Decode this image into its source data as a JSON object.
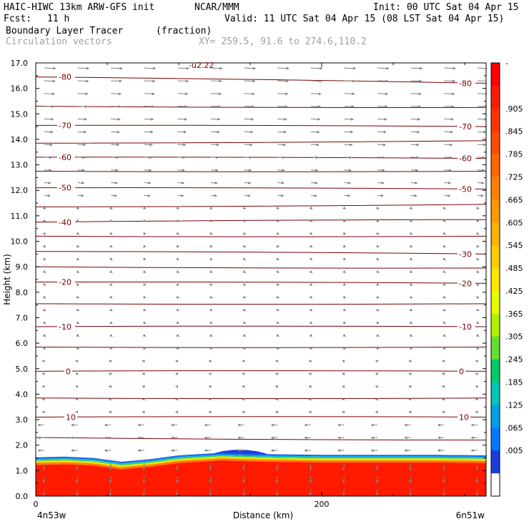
{
  "header": {
    "model_title": "HAIC-HIWC 13km ARW-GFS init",
    "org": "NCAR/MMM",
    "init": "Init: 00 UTC Sat 04 Apr 15",
    "fcst_label": "Fcst:",
    "fcst_value": "11 h",
    "valid": "Valid: 11 UTC Sat 04 Apr 15 (08 LST Sat 04 Apr 15)",
    "field_name": "Boundary Layer Tracer",
    "field_unit": "(fraction)",
    "overlay_name": "Circulation vectors",
    "xy_text": "XY= 259.5, 91.6 to 274.6,110.2",
    "top_fragment": "-u2.22"
  },
  "chart_data": {
    "type": "heatmap",
    "xlabel": "Distance (km)",
    "ylabel": "Height (km)",
    "xlim": [
      0,
      315
    ],
    "ylim": [
      0,
      17
    ],
    "y_ticks": [
      "0.0",
      "1.0",
      "2.0",
      "3.0",
      "4.0",
      "5.0",
      "6.0",
      "7.0",
      "8.0",
      "9.0",
      "10.0",
      "11.0",
      "12.0",
      "13.0",
      "14.0",
      "15.0",
      "16.0",
      "17.0"
    ],
    "x_ticks": [
      {
        "value": 0,
        "label": "0"
      },
      {
        "value": 200,
        "label": "200"
      }
    ],
    "x_end_labels": {
      "left": "4n53w",
      "right": "6n51w"
    },
    "colorbar": {
      "labels": [
        "-",
        ".905",
        ".845",
        ".785",
        ".725",
        ".665",
        ".605",
        ".545",
        ".485",
        ".425",
        ".365",
        ".305",
        ".245",
        ".185",
        ".125",
        ".065",
        ".005"
      ],
      "colors": [
        "#ff0000",
        "#ff1a00",
        "#ff3300",
        "#ff4d00",
        "#ff6600",
        "#ff8000",
        "#ff9900",
        "#ffb300",
        "#ffcc00",
        "#ffe600",
        "#e6ff00",
        "#b3f000",
        "#66dd33",
        "#00cc66",
        "#00c8b4",
        "#00a0e6",
        "#0078ff",
        "#1e3cdc",
        "#ffffff"
      ]
    },
    "temperature_contours": [
      {
        "label": "-80",
        "y_left": 16.45,
        "y_right": 16.2,
        "label_left": true,
        "label_right": true
      },
      {
        "label": "",
        "y_left": 15.3,
        "y_right": 15.25,
        "label_left": false,
        "label_right": false
      },
      {
        "label": "-70",
        "y_left": 14.55,
        "y_right": 14.5,
        "label_left": true,
        "label_right": true
      },
      {
        "label": "",
        "y_left": 13.85,
        "y_right": 13.95,
        "label_left": false,
        "label_right": false
      },
      {
        "label": "-60",
        "y_left": 13.3,
        "y_right": 13.25,
        "label_left": true,
        "label_right": true
      },
      {
        "label": "",
        "y_left": 12.75,
        "y_right": 12.75,
        "label_left": false,
        "label_right": false
      },
      {
        "label": "-50",
        "y_left": 12.1,
        "y_right": 12.05,
        "label_left": true,
        "label_right": true
      },
      {
        "label": "",
        "y_left": 11.35,
        "y_right": 11.45,
        "label_left": false,
        "label_right": false
      },
      {
        "label": "-40",
        "y_left": 10.75,
        "y_right": 10.85,
        "label_left": true,
        "label_right": false
      },
      {
        "label": "",
        "y_left": 10.2,
        "y_right": 10.2,
        "label_left": false,
        "label_right": false
      },
      {
        "label": "-30",
        "y_left": 9.6,
        "y_right": 9.5,
        "label_left": false,
        "label_right": true
      },
      {
        "label": "",
        "y_left": 9.0,
        "y_right": 8.95,
        "label_left": false,
        "label_right": false
      },
      {
        "label": "-20",
        "y_left": 8.4,
        "y_right": 8.35,
        "label_left": true,
        "label_right": true
      },
      {
        "label": "",
        "y_left": 7.55,
        "y_right": 7.55,
        "label_left": false,
        "label_right": false
      },
      {
        "label": "-10",
        "y_left": 6.65,
        "y_right": 6.65,
        "label_left": true,
        "label_right": true
      },
      {
        "label": "",
        "y_left": 5.85,
        "y_right": 5.85,
        "label_left": false,
        "label_right": false
      },
      {
        "label": "0",
        "y_left": 4.9,
        "y_right": 4.9,
        "label_left": true,
        "label_right": true
      },
      {
        "label": "",
        "y_left": 3.85,
        "y_right": 3.85,
        "label_left": false,
        "label_right": false
      },
      {
        "label": "10",
        "y_left": 3.1,
        "y_right": 3.1,
        "label_left": true,
        "label_right": true
      },
      {
        "label": "",
        "y_left": 2.3,
        "y_right": 2.2,
        "label_left": false,
        "label_right": false
      }
    ],
    "tracer_top_km": [
      1.52,
      1.55,
      1.5,
      1.35,
      1.45,
      1.6,
      1.7,
      1.65,
      1.62,
      1.62,
      1.62,
      1.6
    ],
    "tracer_top_x_km": [
      0,
      20,
      40,
      60,
      80,
      100,
      130,
      160,
      200,
      240,
      280,
      315
    ],
    "blue_bump": {
      "x_start_km": 120,
      "x_end_km": 165,
      "top_km": 1.9
    },
    "vectors": {
      "upper_direction": "east",
      "lower_direction": "west",
      "near_surface_direction": "down"
    }
  }
}
